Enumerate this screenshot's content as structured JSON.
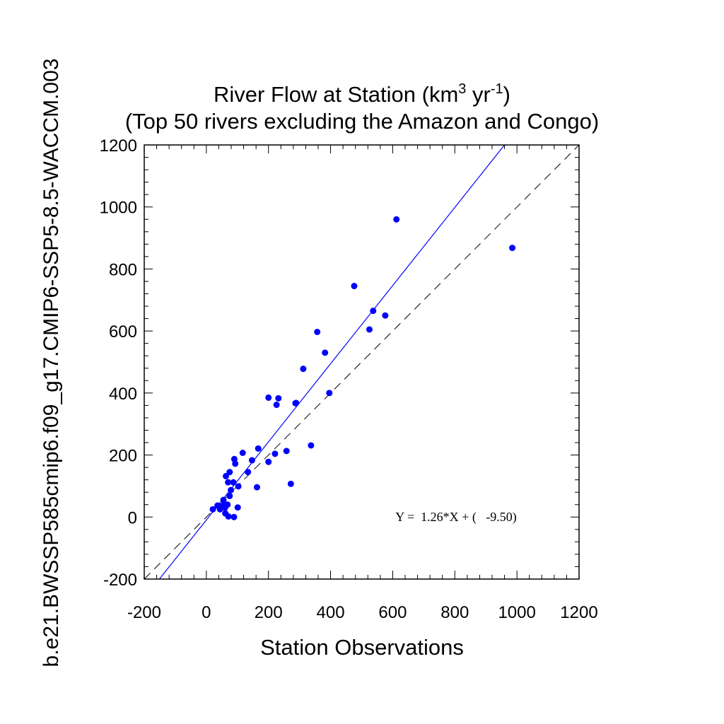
{
  "chart_data": {
    "type": "scatter",
    "title_main": "River Flow at Station (km",
    "title_sup1": "3",
    "title_mid": " yr",
    "title_sup2": "-1",
    "title_end": ")",
    "subtitle": "(Top 50 rivers excluding the Amazon and Congo)",
    "xlabel": "Station Observations",
    "ylabel": "b.e21.BWSSP585cmip6.f09_g17.CMIP6-SSP5-8.5-WACCM.003",
    "xlim": [
      -200,
      1200
    ],
    "ylim": [
      -200,
      1200
    ],
    "x_ticks": [
      "-200",
      "0",
      "200",
      "400",
      "600",
      "800",
      "1000",
      "1200"
    ],
    "y_ticks": [
      "-200",
      "0",
      "200",
      "400",
      "600",
      "800",
      "1000",
      "1200"
    ],
    "regression_label": "Y =  1.26*X + (   -9.50)",
    "regression": {
      "slope": 1.26,
      "intercept": -9.5
    },
    "one_to_one_line": true,
    "point_color": "#0000ff",
    "line_color": "#0000ff",
    "points": [
      [
        612,
        960
      ],
      [
        985,
        868
      ],
      [
        476,
        745
      ],
      [
        537,
        665
      ],
      [
        576,
        650
      ],
      [
        525,
        605
      ],
      [
        357,
        597
      ],
      [
        382,
        530
      ],
      [
        312,
        478
      ],
      [
        396,
        400
      ],
      [
        200,
        385
      ],
      [
        232,
        383
      ],
      [
        226,
        362
      ],
      [
        289,
        368
      ],
      [
        287,
        367
      ],
      [
        337,
        231
      ],
      [
        167,
        221
      ],
      [
        117,
        207
      ],
      [
        221,
        204
      ],
      [
        258,
        213
      ],
      [
        147,
        183
      ],
      [
        200,
        178
      ],
      [
        90,
        187
      ],
      [
        93,
        172
      ],
      [
        134,
        145
      ],
      [
        75,
        145
      ],
      [
        63,
        132
      ],
      [
        70,
        112
      ],
      [
        87,
        112
      ],
      [
        272,
        107
      ],
      [
        163,
        96
      ],
      [
        103,
        99
      ],
      [
        79,
        87
      ],
      [
        75,
        68
      ],
      [
        55,
        55
      ],
      [
        68,
        40
      ],
      [
        53,
        37
      ],
      [
        36,
        37
      ],
      [
        60,
        30
      ],
      [
        44,
        25
      ],
      [
        21,
        25
      ],
      [
        101,
        31
      ],
      [
        61,
        12
      ],
      [
        71,
        2
      ],
      [
        89,
        0
      ]
    ]
  }
}
